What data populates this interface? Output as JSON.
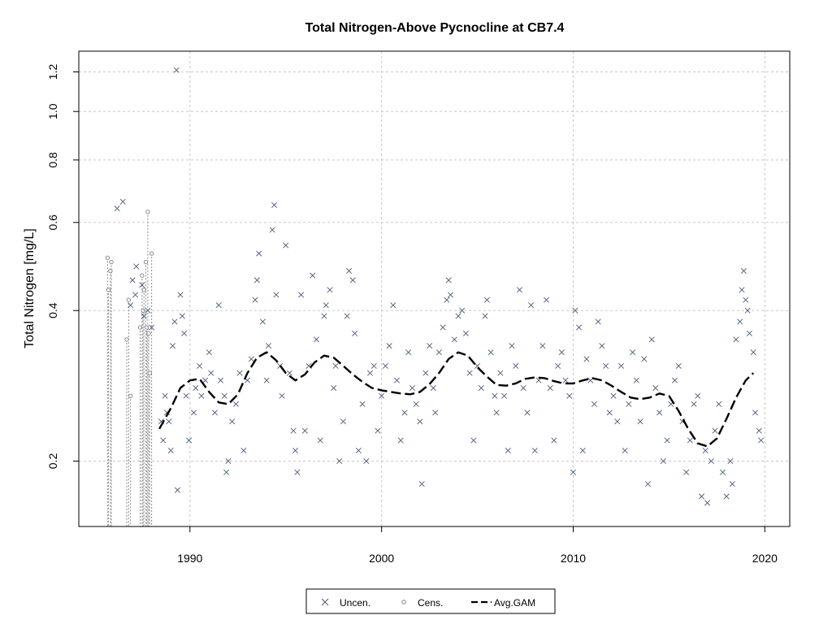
{
  "chart_data": {
    "type": "scatter",
    "title": "Total Nitrogen-Above Pycnocline at CB7.4",
    "xlabel": "",
    "ylabel": "Total Nitrogen [mg/L]",
    "y_scale": "log",
    "xlim": [
      1984.2,
      2021.3
    ],
    "ylim": [
      0.148,
      1.32
    ],
    "x_ticks": [
      1990,
      2000,
      2010,
      2020
    ],
    "y_ticks": [
      0.2,
      0.4,
      0.6,
      0.8,
      1.0,
      1.2
    ],
    "y_tick_labels": [
      "0.2",
      "0.4",
      "0.6",
      "0.8",
      "1.0",
      "1.2"
    ],
    "grid": true,
    "legend_position": "bottom-center",
    "legend": [
      "Uncen.",
      "Cens.",
      "Avg.GAM"
    ],
    "series": [
      {
        "name": "Uncen.",
        "marker": "x",
        "color": "#4a5a78",
        "points": [
          [
            1986.2,
            0.64
          ],
          [
            1986.5,
            0.66
          ],
          [
            1986.9,
            0.41
          ],
          [
            1987.0,
            0.46
          ],
          [
            1987.15,
            0.43
          ],
          [
            1987.2,
            0.49
          ],
          [
            1987.5,
            0.45
          ],
          [
            1987.6,
            0.39
          ],
          [
            1987.8,
            0.4
          ],
          [
            1988.0,
            0.37
          ],
          [
            1988.5,
            0.24
          ],
          [
            1988.6,
            0.22
          ],
          [
            1988.7,
            0.27
          ],
          [
            1988.8,
            0.25
          ],
          [
            1988.9,
            0.24
          ],
          [
            1989.0,
            0.21
          ],
          [
            1989.1,
            0.34
          ],
          [
            1989.2,
            0.38
          ],
          [
            1989.3,
            1.21
          ],
          [
            1989.35,
            0.175
          ],
          [
            1989.5,
            0.43
          ],
          [
            1989.6,
            0.39
          ],
          [
            1989.7,
            0.36
          ],
          [
            1989.8,
            0.27
          ],
          [
            1989.95,
            0.22
          ],
          [
            1990.2,
            0.25
          ],
          [
            1990.3,
            0.28
          ],
          [
            1990.5,
            0.31
          ],
          [
            1990.6,
            0.27
          ],
          [
            1990.8,
            0.29
          ],
          [
            1991.0,
            0.33
          ],
          [
            1991.1,
            0.3
          ],
          [
            1991.3,
            0.25
          ],
          [
            1991.5,
            0.41
          ],
          [
            1991.6,
            0.29
          ],
          [
            1991.8,
            0.27
          ],
          [
            1991.9,
            0.19
          ],
          [
            1992.0,
            0.2
          ],
          [
            1992.2,
            0.24
          ],
          [
            1992.4,
            0.26
          ],
          [
            1992.6,
            0.3
          ],
          [
            1992.8,
            0.21
          ],
          [
            1993.0,
            0.29
          ],
          [
            1993.2,
            0.32
          ],
          [
            1993.4,
            0.42
          ],
          [
            1993.5,
            0.46
          ],
          [
            1993.6,
            0.52
          ],
          [
            1993.8,
            0.38
          ],
          [
            1994.0,
            0.29
          ],
          [
            1994.1,
            0.34
          ],
          [
            1994.3,
            0.58
          ],
          [
            1994.4,
            0.65
          ],
          [
            1994.5,
            0.43
          ],
          [
            1994.7,
            0.31
          ],
          [
            1994.8,
            0.27
          ],
          [
            1995.0,
            0.54
          ],
          [
            1995.2,
            0.3
          ],
          [
            1995.4,
            0.23
          ],
          [
            1995.5,
            0.21
          ],
          [
            1995.6,
            0.19
          ],
          [
            1995.8,
            0.43
          ],
          [
            1996.0,
            0.23
          ],
          [
            1996.2,
            0.31
          ],
          [
            1996.4,
            0.47
          ],
          [
            1996.6,
            0.35
          ],
          [
            1996.8,
            0.22
          ],
          [
            1997.0,
            0.39
          ],
          [
            1997.1,
            0.41
          ],
          [
            1997.3,
            0.44
          ],
          [
            1997.5,
            0.28
          ],
          [
            1997.6,
            0.31
          ],
          [
            1997.8,
            0.2
          ],
          [
            1998.0,
            0.24
          ],
          [
            1998.2,
            0.39
          ],
          [
            1998.3,
            0.48
          ],
          [
            1998.5,
            0.46
          ],
          [
            1998.6,
            0.36
          ],
          [
            1998.8,
            0.21
          ],
          [
            1999.0,
            0.26
          ],
          [
            1999.2,
            0.2
          ],
          [
            1999.4,
            0.3
          ],
          [
            1999.6,
            0.31
          ],
          [
            1999.8,
            0.23
          ],
          [
            2000.0,
            0.27
          ],
          [
            2000.2,
            0.31
          ],
          [
            2000.4,
            0.34
          ],
          [
            2000.6,
            0.41
          ],
          [
            2000.8,
            0.29
          ],
          [
            2001.0,
            0.22
          ],
          [
            2001.2,
            0.25
          ],
          [
            2001.4,
            0.33
          ],
          [
            2001.6,
            0.28
          ],
          [
            2001.8,
            0.26
          ],
          [
            2002.0,
            0.24
          ],
          [
            2002.1,
            0.18
          ],
          [
            2002.3,
            0.3
          ],
          [
            2002.5,
            0.34
          ],
          [
            2002.7,
            0.28
          ],
          [
            2002.8,
            0.25
          ],
          [
            2003.0,
            0.33
          ],
          [
            2003.2,
            0.37
          ],
          [
            2003.4,
            0.42
          ],
          [
            2003.5,
            0.46
          ],
          [
            2003.6,
            0.43
          ],
          [
            2003.8,
            0.35
          ],
          [
            2004.0,
            0.39
          ],
          [
            2004.2,
            0.4
          ],
          [
            2004.4,
            0.36
          ],
          [
            2004.6,
            0.3
          ],
          [
            2004.8,
            0.22
          ],
          [
            2005.0,
            0.31
          ],
          [
            2005.2,
            0.28
          ],
          [
            2005.4,
            0.39
          ],
          [
            2005.5,
            0.42
          ],
          [
            2005.7,
            0.33
          ],
          [
            2005.9,
            0.27
          ],
          [
            2006.0,
            0.25
          ],
          [
            2006.2,
            0.3
          ],
          [
            2006.4,
            0.27
          ],
          [
            2006.6,
            0.21
          ],
          [
            2006.8,
            0.34
          ],
          [
            2007.0,
            0.31
          ],
          [
            2007.2,
            0.44
          ],
          [
            2007.4,
            0.28
          ],
          [
            2007.6,
            0.25
          ],
          [
            2007.8,
            0.41
          ],
          [
            2008.0,
            0.21
          ],
          [
            2008.2,
            0.29
          ],
          [
            2008.4,
            0.34
          ],
          [
            2008.6,
            0.42
          ],
          [
            2008.8,
            0.28
          ],
          [
            2009.0,
            0.22
          ],
          [
            2009.2,
            0.31
          ],
          [
            2009.4,
            0.33
          ],
          [
            2009.6,
            0.29
          ],
          [
            2009.8,
            0.27
          ],
          [
            2010.0,
            0.19
          ],
          [
            2010.1,
            0.4
          ],
          [
            2010.3,
            0.37
          ],
          [
            2010.5,
            0.21
          ],
          [
            2010.7,
            0.32
          ],
          [
            2010.9,
            0.29
          ],
          [
            2011.1,
            0.26
          ],
          [
            2011.3,
            0.38
          ],
          [
            2011.5,
            0.34
          ],
          [
            2011.7,
            0.31
          ],
          [
            2011.9,
            0.25
          ],
          [
            2012.1,
            0.27
          ],
          [
            2012.3,
            0.24
          ],
          [
            2012.5,
            0.31
          ],
          [
            2012.7,
            0.21
          ],
          [
            2012.9,
            0.26
          ],
          [
            2013.1,
            0.33
          ],
          [
            2013.3,
            0.29
          ],
          [
            2013.5,
            0.24
          ],
          [
            2013.7,
            0.32
          ],
          [
            2013.9,
            0.18
          ],
          [
            2014.1,
            0.35
          ],
          [
            2014.3,
            0.28
          ],
          [
            2014.5,
            0.25
          ],
          [
            2014.7,
            0.2
          ],
          [
            2014.9,
            0.22
          ],
          [
            2015.1,
            0.26
          ],
          [
            2015.3,
            0.29
          ],
          [
            2015.5,
            0.31
          ],
          [
            2015.7,
            0.24
          ],
          [
            2015.9,
            0.19
          ],
          [
            2016.1,
            0.22
          ],
          [
            2016.3,
            0.26
          ],
          [
            2016.5,
            0.27
          ],
          [
            2016.7,
            0.17
          ],
          [
            2016.9,
            0.21
          ],
          [
            2017.0,
            0.165
          ],
          [
            2017.2,
            0.2
          ],
          [
            2017.4,
            0.23
          ],
          [
            2017.6,
            0.26
          ],
          [
            2017.8,
            0.19
          ],
          [
            2018.0,
            0.17
          ],
          [
            2018.2,
            0.2
          ],
          [
            2018.3,
            0.18
          ],
          [
            2018.5,
            0.35
          ],
          [
            2018.7,
            0.38
          ],
          [
            2018.8,
            0.44
          ],
          [
            2018.9,
            0.48
          ],
          [
            2019.0,
            0.42
          ],
          [
            2019.1,
            0.4
          ],
          [
            2019.2,
            0.36
          ],
          [
            2019.4,
            0.33
          ],
          [
            2019.5,
            0.25
          ],
          [
            2019.7,
            0.23
          ],
          [
            2019.8,
            0.22
          ]
        ]
      },
      {
        "name": "Cens.",
        "marker": "o",
        "color": "#808080",
        "points": [
          [
            1985.7,
            0.51
          ],
          [
            1985.75,
            0.44
          ],
          [
            1985.85,
            0.48
          ],
          [
            1985.9,
            0.5
          ],
          [
            1986.7,
            0.35
          ],
          [
            1986.8,
            0.42
          ],
          [
            1986.9,
            0.27
          ],
          [
            1987.4,
            0.37
          ],
          [
            1987.5,
            0.47
          ],
          [
            1987.55,
            0.4
          ],
          [
            1987.6,
            0.44
          ],
          [
            1987.7,
            0.5
          ],
          [
            1987.75,
            0.37
          ],
          [
            1987.8,
            0.63
          ],
          [
            1987.85,
            0.36
          ],
          [
            1987.9,
            0.3
          ],
          [
            1988.0,
            0.52
          ]
        ]
      },
      {
        "name": "Avg.GAM",
        "line": "dashed",
        "color": "#000000",
        "points": [
          [
            1988.4,
            0.232
          ],
          [
            1989.0,
            0.255
          ],
          [
            1989.5,
            0.28
          ],
          [
            1990.0,
            0.29
          ],
          [
            1990.5,
            0.292
          ],
          [
            1991.0,
            0.275
          ],
          [
            1991.5,
            0.262
          ],
          [
            1992.0,
            0.26
          ],
          [
            1992.5,
            0.272
          ],
          [
            1993.0,
            0.3
          ],
          [
            1993.5,
            0.322
          ],
          [
            1994.0,
            0.33
          ],
          [
            1994.5,
            0.318
          ],
          [
            1995.0,
            0.3
          ],
          [
            1995.5,
            0.29
          ],
          [
            1996.0,
            0.298
          ],
          [
            1996.5,
            0.315
          ],
          [
            1997.0,
            0.325
          ],
          [
            1997.5,
            0.322
          ],
          [
            1998.0,
            0.31
          ],
          [
            1998.5,
            0.298
          ],
          [
            1999.0,
            0.288
          ],
          [
            1999.5,
            0.28
          ],
          [
            2000.0,
            0.277
          ],
          [
            2000.5,
            0.275
          ],
          [
            2001.0,
            0.273
          ],
          [
            2001.5,
            0.272
          ],
          [
            2002.0,
            0.275
          ],
          [
            2002.5,
            0.285
          ],
          [
            2003.0,
            0.3
          ],
          [
            2003.5,
            0.32
          ],
          [
            2004.0,
            0.33
          ],
          [
            2004.5,
            0.325
          ],
          [
            2005.0,
            0.308
          ],
          [
            2005.5,
            0.295
          ],
          [
            2006.0,
            0.284
          ],
          [
            2006.5,
            0.283
          ],
          [
            2007.0,
            0.286
          ],
          [
            2007.5,
            0.292
          ],
          [
            2008.0,
            0.294
          ],
          [
            2008.5,
            0.293
          ],
          [
            2009.0,
            0.289
          ],
          [
            2009.5,
            0.286
          ],
          [
            2010.0,
            0.286
          ],
          [
            2010.5,
            0.29
          ],
          [
            2011.0,
            0.293
          ],
          [
            2011.5,
            0.29
          ],
          [
            2012.0,
            0.283
          ],
          [
            2012.5,
            0.275
          ],
          [
            2013.0,
            0.268
          ],
          [
            2013.5,
            0.266
          ],
          [
            2014.0,
            0.268
          ],
          [
            2014.5,
            0.273
          ],
          [
            2015.0,
            0.27
          ],
          [
            2015.5,
            0.252
          ],
          [
            2016.0,
            0.232
          ],
          [
            2016.5,
            0.217
          ],
          [
            2017.0,
            0.214
          ],
          [
            2017.5,
            0.222
          ],
          [
            2018.0,
            0.243
          ],
          [
            2018.5,
            0.268
          ],
          [
            2019.0,
            0.29
          ],
          [
            2019.4,
            0.3
          ]
        ]
      }
    ]
  }
}
